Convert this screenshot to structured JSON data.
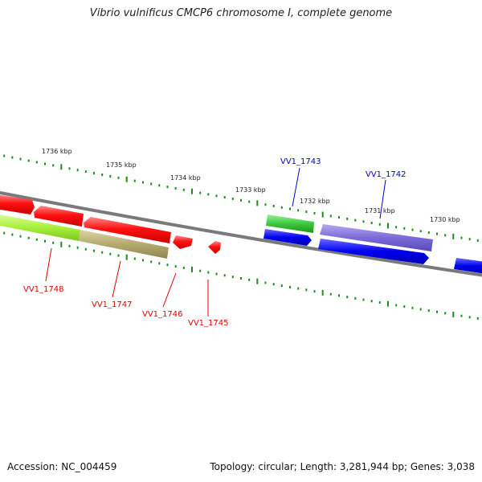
{
  "title": "Vibrio vulnificus CMCP6 chromosome I, complete genome",
  "footer": {
    "accession": "Accession: NC_004459",
    "summary": "Topology: circular; Length: 3,281,944 bp; Genes: 3,038"
  },
  "colors": {
    "backbone": "#808080",
    "ticks": "#1e8c1e",
    "red": "#ff0000",
    "lime": "#a8f03c",
    "olive": "#b4aa6e",
    "green": "#3cc83c",
    "purple": "#7b6ad8",
    "blue": "#0000ee"
  },
  "scale": {
    "tick_labels": [
      "1736 kbp",
      "1735 kbp",
      "1734 kbp",
      "1733 kbp",
      "1732 kbp",
      "1731 kbp",
      "1730 kbp"
    ]
  },
  "genes": [
    {
      "id": "VV1_1748",
      "label": "VV1_1748",
      "color": "#e60000"
    },
    {
      "id": "VV1_1747",
      "label": "VV1_1747",
      "color": "#e60000"
    },
    {
      "id": "VV1_1746",
      "label": "VV1_1746",
      "color": "#e60000"
    },
    {
      "id": "VV1_1745",
      "label": "VV1_1745",
      "color": "#e60000"
    },
    {
      "id": "VV1_1743",
      "label": "VV1_1743",
      "color": "#0000cc"
    },
    {
      "id": "VV1_1742",
      "label": "VV1_1742",
      "color": "#0000cc"
    }
  ]
}
